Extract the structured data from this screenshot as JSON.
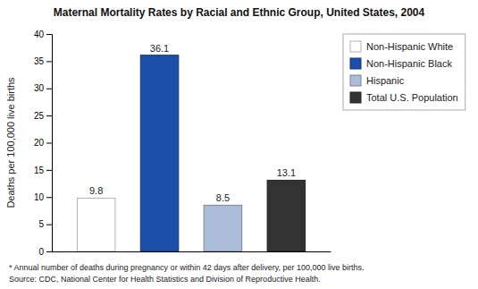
{
  "chart_data": {
    "type": "bar",
    "title": "Maternal Mortality Rates by Racial and Ethnic Group, United States, 2004",
    "categories": [
      "Non-Hispanic White",
      "Non-Hispanic Black",
      "Hispanic",
      "Total U.S. Population"
    ],
    "values": [
      9.8,
      36.1,
      8.5,
      13.1
    ],
    "colors": [
      "#ffffff",
      "#1b4faa",
      "#aabcd8",
      "#333333"
    ],
    "ylabel": "Deaths per 100,000 live births",
    "ylim": [
      0,
      40
    ],
    "yticks": [
      0,
      5,
      10,
      15,
      20,
      25,
      30,
      35,
      40
    ],
    "annotations": [
      "* Annual number of deaths during pregnancy or within 42 days after delivery, per 100,000 live births.",
      "Source: CDC, National Center for Health Statistics and Division of Reproductive Health."
    ],
    "data_labels": true,
    "grid": false,
    "legend": "right",
    "tick_labels": "y"
  }
}
